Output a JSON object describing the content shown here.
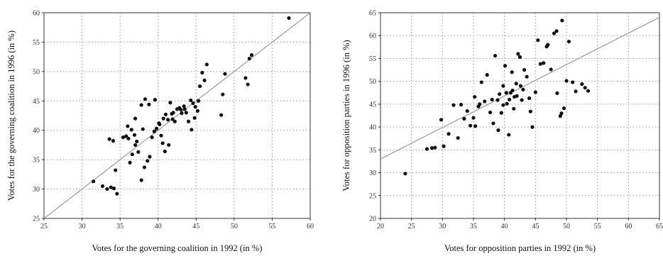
{
  "chart_data": [
    {
      "type": "scatter",
      "title": "",
      "xlabel": "Votes for the governing coalition in 1992 (in %)",
      "ylabel": "Votes for the governing coalition in 1996 (in %)",
      "xlim": [
        25,
        60
      ],
      "ylim": [
        25,
        60
      ],
      "xticks": [
        25,
        30,
        35,
        40,
        45,
        50,
        55,
        60
      ],
      "yticks": [
        25,
        30,
        35,
        40,
        45,
        50,
        55,
        60
      ],
      "grid": true,
      "reference_line": {
        "x": [
          25,
          60
        ],
        "y": [
          25,
          60
        ]
      },
      "series": [
        {
          "x": [
            31.5,
            32.7,
            33.3,
            33.8,
            34.2,
            34.6,
            33.6,
            34.1,
            34.4,
            35.4,
            35.8,
            36.1,
            36.5,
            36.9,
            37.2,
            36.3,
            37.0,
            37.4,
            37.8,
            38.2,
            38.6,
            38.9,
            39.2,
            39.5,
            39.8,
            40.1,
            40.4,
            40.7,
            41.0,
            41.3,
            41.6,
            41.9,
            42.2,
            42.5,
            42.8,
            43.1,
            43.4,
            43.7,
            44.0,
            44.3,
            44.6,
            44.9,
            45.2,
            45.5,
            45.8,
            46.1,
            46.4,
            37.0,
            37.8,
            38.3,
            38.8,
            39.6,
            40.6,
            40.9,
            41.4,
            42.0,
            43.5,
            44.4,
            44.8,
            45.3,
            48.3,
            48.5,
            48.8,
            51.5,
            51.8,
            52.0,
            52.3,
            57.2,
            40.2,
            41.8,
            43.0,
            38.0,
            36.6,
            36.0
          ],
          "y": [
            31.3,
            30.5,
            30.0,
            30.3,
            30.1,
            29.2,
            38.5,
            38.2,
            33.2,
            38.8,
            39.0,
            38.6,
            40.1,
            39.2,
            38.1,
            34.5,
            37.5,
            36.3,
            31.5,
            33.7,
            34.8,
            35.5,
            38.8,
            39.8,
            40.3,
            41.2,
            39.1,
            42.0,
            42.7,
            41.8,
            44.7,
            41.9,
            41.5,
            43.6,
            43.8,
            42.9,
            44.1,
            43.0,
            41.5,
            45.1,
            44.6,
            44.0,
            43.3,
            47.5,
            49.8,
            48.5,
            51.2,
            42.0,
            44.3,
            45.3,
            44.4,
            45.2,
            37.8,
            36.4,
            37.5,
            43.0,
            43.6,
            40.1,
            42.1,
            45.0,
            42.6,
            46.1,
            49.6,
            48.9,
            47.8,
            52.2,
            52.8,
            59.1,
            41.0,
            42.8,
            43.5,
            40.2,
            35.9,
            40.7
          ]
        }
      ]
    },
    {
      "type": "scatter",
      "title": "",
      "xlabel": "Votes for opposition parties in 1992 (in %)",
      "ylabel": "Votes for opposition parties in 1996 (in %)",
      "xlim": [
        20,
        65
      ],
      "ylim": [
        20,
        65
      ],
      "xticks": [
        20,
        25,
        30,
        35,
        40,
        45,
        50,
        55,
        60,
        65
      ],
      "yticks": [
        20,
        25,
        30,
        35,
        40,
        45,
        50,
        55,
        60,
        65
      ],
      "grid": true,
      "reference_line": {
        "x": [
          20,
          65
        ],
        "y": [
          33,
          64
        ]
      },
      "series": [
        {
          "x": [
            24.0,
            27.5,
            28.3,
            28.8,
            29.8,
            30.2,
            31.0,
            31.8,
            32.5,
            33.0,
            33.5,
            34.0,
            34.5,
            35.0,
            35.3,
            35.8,
            36.3,
            36.8,
            37.2,
            37.7,
            38.0,
            38.5,
            38.9,
            39.2,
            39.5,
            39.8,
            40.1,
            40.4,
            40.7,
            41.0,
            41.3,
            41.6,
            41.9,
            42.2,
            42.5,
            42.8,
            43.2,
            43.6,
            44.0,
            44.5,
            45.0,
            45.4,
            45.8,
            46.3,
            46.8,
            47.5,
            48.0,
            48.4,
            49.0,
            49.3,
            49.6,
            50.0,
            50.4,
            51.0,
            51.5,
            52.5,
            53.0,
            53.5,
            35.2,
            36.0,
            38.2,
            39.0,
            40.3,
            41.5,
            42.0,
            43.0,
            44.2,
            47.0,
            48.5,
            49.2,
            40.8,
            39.8,
            41.2,
            42.6
          ],
          "y": [
            29.8,
            35.2,
            35.4,
            35.5,
            41.6,
            35.8,
            38.5,
            44.8,
            37.6,
            44.9,
            41.8,
            43.5,
            40.3,
            42.0,
            40.2,
            44.5,
            49.8,
            45.6,
            51.4,
            43.2,
            46.0,
            55.6,
            45.9,
            47.2,
            43.1,
            49.0,
            53.4,
            45.1,
            38.3,
            47.5,
            48.0,
            46.6,
            49.5,
            56.0,
            55.3,
            45.9,
            52.5,
            51.0,
            46.3,
            40.0,
            47.6,
            59.0,
            53.8,
            54.0,
            57.6,
            52.6,
            60.5,
            61.0,
            42.4,
            63.3,
            44.1,
            50.1,
            58.7,
            49.8,
            47.8,
            49.4,
            48.6,
            47.9,
            46.6,
            45.0,
            40.8,
            39.3,
            47.5,
            44.0,
            46.8,
            48.2,
            43.4,
            58.0,
            47.4,
            43.0,
            46.0,
            44.8,
            52.0,
            49.0
          ]
        }
      ]
    }
  ]
}
